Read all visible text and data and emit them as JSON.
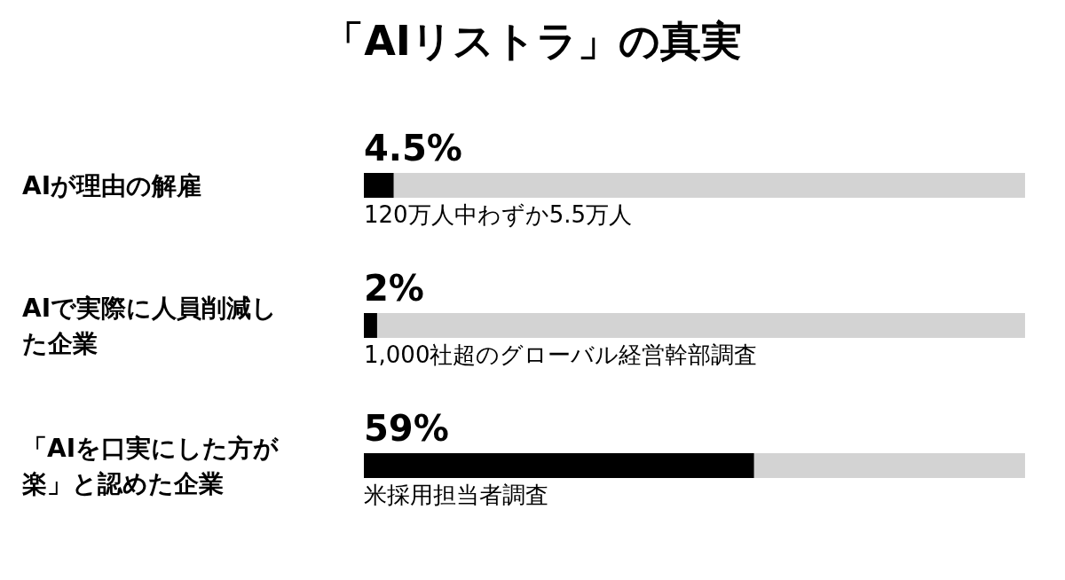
{
  "chart_data": {
    "type": "bar",
    "orientation": "horizontal",
    "title": "「AIリストラ」の真実",
    "categories": [
      "AIが理由の解雇",
      "AIで実際に人員削減した企業",
      "「AIを口実にした方が楽」と認めた企業"
    ],
    "values": [
      4.5,
      2,
      59
    ],
    "color": "#000000",
    "value_labels": [
      "4.5%",
      "2%",
      "59%"
    ],
    "xlim": [
      0,
      100
    ],
    "annotations": [
      "120万人中わずか5.5万人",
      "1,000社超のグローバル経営幹部調査",
      "米採用担当者調査"
    ],
    "grid": false,
    "tick_labels": "y"
  }
}
